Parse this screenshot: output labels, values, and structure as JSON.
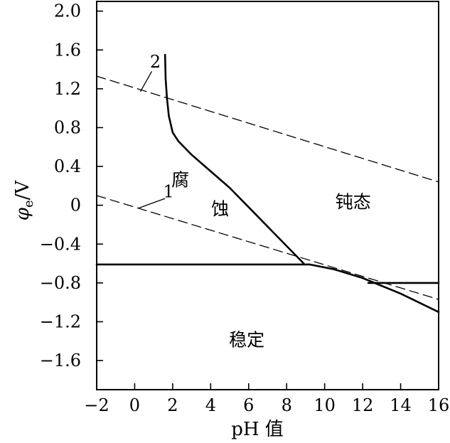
{
  "chart_data": {
    "type": "line",
    "title": "",
    "xlabel": "pH 值",
    "ylabel": "φe/V",
    "ylabel_main": "φ",
    "ylabel_sub": "e",
    "ylabel_unit": "/V",
    "xlim": [
      -2,
      16
    ],
    "ylim": [
      -1.9,
      2.1
    ],
    "x_ticks": [
      -2,
      0,
      2,
      4,
      6,
      8,
      10,
      12,
      14,
      16
    ],
    "x_tick_labels": [
      "−2",
      "0",
      "2",
      "4",
      "6",
      "8",
      "10",
      "12",
      "14",
      "16"
    ],
    "y_ticks": [
      2.0,
      1.6,
      1.2,
      0.8,
      0.4,
      0,
      -0.4,
      -0.8,
      -1.2,
      -1.6
    ],
    "y_tick_labels": [
      "2.0",
      "1.6",
      "1.2",
      "0.8",
      "0.4",
      "0",
      "−0.4",
      "−0.8",
      "−1.2",
      "−1.6"
    ],
    "grid": false,
    "series": [
      {
        "style": "solid",
        "points": [
          [
            1.6,
            1.55
          ],
          [
            1.63,
            1.3
          ],
          [
            1.7,
            1.1
          ],
          [
            1.8,
            0.92
          ],
          [
            2.0,
            0.75
          ],
          [
            2.3,
            0.66
          ],
          [
            3.0,
            0.52
          ],
          [
            4.0,
            0.35
          ],
          [
            5.0,
            0.18
          ],
          [
            6.0,
            -0.02
          ],
          [
            7.0,
            -0.22
          ],
          [
            8.0,
            -0.42
          ],
          [
            8.9,
            -0.6
          ]
        ]
      },
      {
        "style": "solid",
        "points": [
          [
            -2,
            -0.61
          ],
          [
            9.2,
            -0.61
          ]
        ]
      },
      {
        "style": "solid",
        "points": [
          [
            9.2,
            -0.61
          ],
          [
            10.5,
            -0.66
          ],
          [
            12.0,
            -0.75
          ],
          [
            14.0,
            -0.91
          ],
          [
            16,
            -1.1
          ]
        ]
      },
      {
        "style": "solid",
        "points": [
          [
            12.3,
            -0.8
          ],
          [
            16,
            -0.8
          ]
        ]
      },
      {
        "name": "2",
        "style": "dashed",
        "points": [
          [
            -2,
            1.33
          ],
          [
            16,
            0.24
          ]
        ]
      },
      {
        "name": "1",
        "style": "dashed",
        "points": [
          [
            -2,
            0.1
          ],
          [
            16,
            -0.97
          ]
        ]
      }
    ],
    "annotations": [
      {
        "text": "2",
        "x": 0.8,
        "y": 1.42,
        "type": "line-label"
      },
      {
        "text": "1",
        "x": 1.5,
        "y": 0.08,
        "type": "line-label"
      },
      {
        "text": "腐",
        "x": 2.4,
        "y": 0.2,
        "type": "region"
      },
      {
        "text": "蚀",
        "x": 4.5,
        "y": -0.1,
        "type": "region"
      },
      {
        "text": "钝态",
        "x": 11.5,
        "y": -0.03,
        "type": "region"
      },
      {
        "text": "稳定",
        "x": 5.9,
        "y": -1.45,
        "type": "region"
      }
    ]
  }
}
